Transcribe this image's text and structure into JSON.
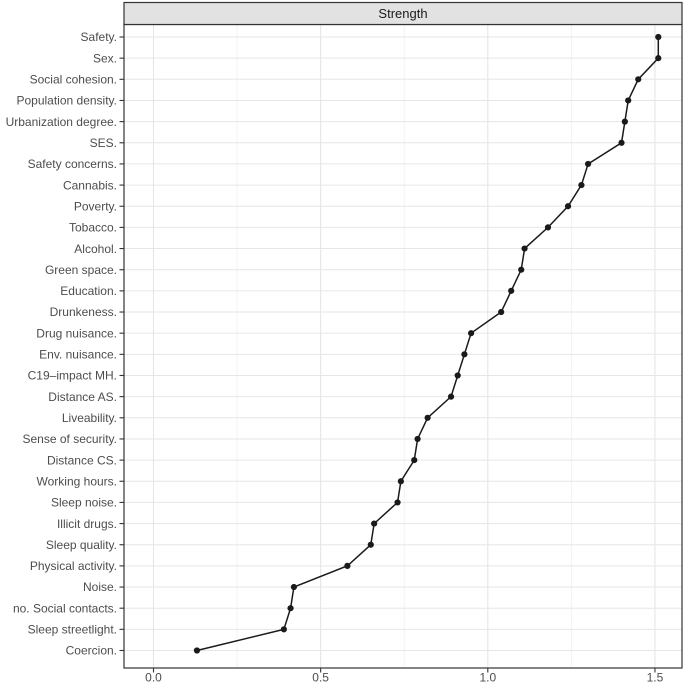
{
  "figure": {
    "strip_title": "Strength"
  },
  "chart_data": {
    "type": "line",
    "orientation": "horizontal-categories",
    "title": "Strength",
    "xlabel": "",
    "ylabel": "",
    "legend": "none",
    "grid": "major-x, minor-x, category-rows",
    "point_marker": "filled-circle",
    "categories": [
      "Safety.",
      "Sex.",
      "Social cohesion.",
      "Population density.",
      "Urbanization degree.",
      "SES.",
      "Safety concerns.",
      "Cannabis.",
      "Poverty.",
      "Tobacco.",
      "Alcohol.",
      "Green space.",
      "Education.",
      "Drunkeness.",
      "Drug nuisance.",
      "Env. nuisance.",
      "C19–impact MH.",
      "Distance AS.",
      "Liveability.",
      "Sense of security.",
      "Distance CS.",
      "Working hours.",
      "Sleep noise.",
      "Illicit drugs.",
      "Sleep quality.",
      "Physical activity.",
      "Noise.",
      "no. Social contacts.",
      "Sleep streetlight.",
      "Coercion."
    ],
    "values": [
      1.51,
      1.51,
      1.45,
      1.42,
      1.41,
      1.4,
      1.3,
      1.28,
      1.24,
      1.18,
      1.11,
      1.1,
      1.07,
      1.04,
      0.95,
      0.93,
      0.91,
      0.89,
      0.82,
      0.79,
      0.78,
      0.74,
      0.73,
      0.66,
      0.65,
      0.58,
      0.42,
      0.41,
      0.39,
      0.13
    ],
    "x_ticks": [
      0.0,
      0.5,
      1.0,
      1.5
    ],
    "x_tick_labels": [
      "0.0",
      "0.5",
      "1.0",
      "1.5"
    ],
    "x_minor_ticks": [
      0.25,
      0.75,
      1.25
    ],
    "xlim": [
      -0.09,
      1.58
    ],
    "colors": {
      "line": "#1a1a1a",
      "point": "#1a1a1a",
      "strip_fill": "#e2e2e2",
      "strip_border": "#333333",
      "panel_border": "#333333",
      "grid_major": "#e6e6e6",
      "grid_minor": "#f2f2f2",
      "axis_text": "#4d4d4d",
      "tick_mark": "#333333"
    }
  }
}
